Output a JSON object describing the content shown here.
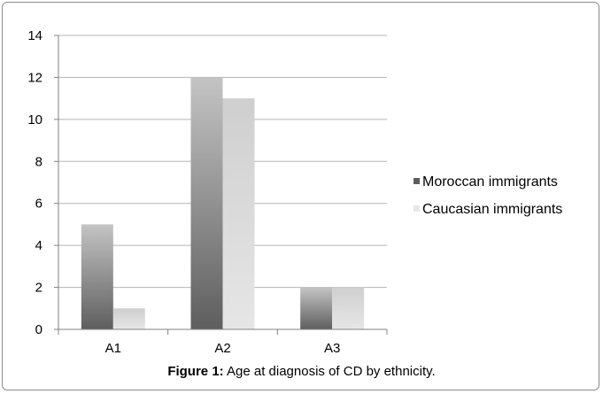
{
  "chart_data": {
    "type": "bar",
    "categories": [
      "A1",
      "A2",
      "A3"
    ],
    "series": [
      {
        "name": "Moroccan immigrants",
        "values": [
          5,
          12,
          2
        ]
      },
      {
        "name": "Caucasian immigrants",
        "values": [
          1,
          11,
          2
        ]
      }
    ],
    "ylim": [
      0,
      14
    ],
    "yticks": [
      0,
      2,
      4,
      6,
      8,
      10,
      12,
      14
    ],
    "grid": true,
    "legend_position": "right",
    "colors": {
      "moroccan_top": "#c4c4c4",
      "moroccan_bottom": "#5e5e5e",
      "caucasian_top": "#cfcfcf",
      "caucasian_bottom": "#e6e6e6",
      "gridline": "#b5b5b5",
      "axis": "#808080"
    }
  },
  "caption": {
    "label": "Figure 1:",
    "text": " Age at diagnosis of CD by ethnicity."
  }
}
